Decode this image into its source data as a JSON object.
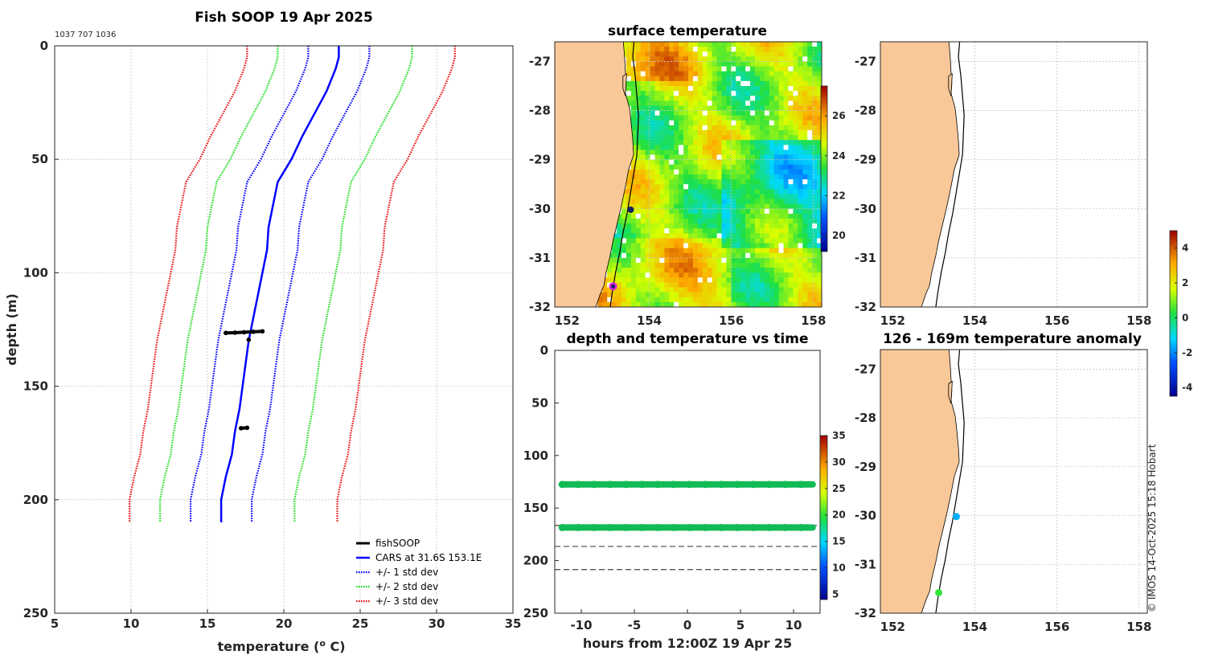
{
  "header": {
    "title": "Fish SOOP 19 Apr 2025",
    "ids": "1037 707 1036"
  },
  "colors": {
    "land": "#f9c898",
    "cars": "#0000ff",
    "std1": "#0000ff",
    "std2": "#22dd22",
    "std3": "#ee1111",
    "fishsoop": "#000000",
    "obs_green": "#11bb55",
    "anomaly_point": "#22aaee",
    "track_point": "#112266",
    "start_marker": "#dd22dd"
  },
  "chart_data": [
    {
      "id": "profile",
      "type": "line",
      "title": "Fish SOOP 19 Apr 2025",
      "xlabel": "temperature (",
      "xlabel_sup": "o",
      "xlabel_end": " C)",
      "ylabel": "depth (m)",
      "xlim": [
        5,
        35
      ],
      "ylim": [
        0,
        250
      ],
      "y_reversed": true,
      "xticks": [
        "5",
        "10",
        "15",
        "20",
        "25",
        "30",
        "35"
      ],
      "yticks": [
        "0",
        "50",
        "100",
        "150",
        "200",
        "250"
      ],
      "xtick_values": [
        5,
        10,
        15,
        20,
        25,
        30,
        35
      ],
      "ytick_values": [
        0,
        50,
        100,
        150,
        200,
        250
      ],
      "depths": [
        0,
        5,
        10,
        20,
        30,
        40,
        50,
        60,
        70,
        80,
        90,
        100,
        110,
        120,
        130,
        140,
        150,
        160,
        170,
        180,
        190,
        200,
        210
      ],
      "cars_mean": [
        23.6,
        23.6,
        23.4,
        22.8,
        22.0,
        21.2,
        20.5,
        19.6,
        19.3,
        19.0,
        18.9,
        18.6,
        18.3,
        18.0,
        17.7,
        17.5,
        17.3,
        17.1,
        16.8,
        16.6,
        16.2,
        15.9,
        15.9
      ],
      "series": [
        {
          "name": "+/- 3 std dev (low)",
          "style": "std3",
          "offset": -6.0
        },
        {
          "name": "+/- 2 std dev (low)",
          "style": "std2",
          "offset": -4.0
        },
        {
          "name": "+/- 1 std dev (low)",
          "style": "std1",
          "offset": -2.0
        },
        {
          "name": "+/- 1 std dev (high)",
          "style": "std1",
          "offset": 2.0
        },
        {
          "name": "+/- 2 std dev (high)",
          "style": "std2",
          "offset": 4.8
        },
        {
          "name": "+/- 3 std dev (high)",
          "style": "std3",
          "offset": 7.6
        }
      ],
      "fishsoop_points": [
        {
          "t": 16.2,
          "d": 126.5
        },
        {
          "t": 16.8,
          "d": 126.4
        },
        {
          "t": 17.4,
          "d": 126.2
        },
        {
          "t": 18.0,
          "d": 126.0
        },
        {
          "t": 18.6,
          "d": 125.8
        },
        {
          "t": 17.7,
          "d": 129.5
        },
        {
          "t": 17.2,
          "d": 168.5
        },
        {
          "t": 17.6,
          "d": 168.3
        }
      ],
      "legend": {
        "position": "bottom-right",
        "entries": [
          {
            "label": "fishSOOP",
            "style": "fishsoop"
          },
          {
            "label": "CARS at 31.6S 153.1E",
            "style": "cars"
          },
          {
            "label": "+/- 1 std dev",
            "style": "std1"
          },
          {
            "label": "+/- 2 std dev",
            "style": "std2"
          },
          {
            "label": "+/- 3 std dev",
            "style": "std3"
          }
        ]
      }
    },
    {
      "id": "sst_map",
      "type": "heatmap",
      "title": "surface temperature",
      "xlim": [
        151.7,
        158.2
      ],
      "ylim": [
        -32,
        -26.6
      ],
      "xticks": [
        "152",
        "154",
        "156",
        "158"
      ],
      "yticks": [
        "-27",
        "-28",
        "-29",
        "-30",
        "-31",
        "-32"
      ],
      "xtick_values": [
        152,
        154,
        156,
        158
      ],
      "ytick_values": [
        -27,
        -28,
        -29,
        -30,
        -31,
        -32
      ],
      "colorbar": {
        "ticks": [
          "20",
          "22",
          "24",
          "26"
        ],
        "tick_values": [
          20,
          22,
          24,
          26
        ],
        "range": [
          19.2,
          27.5
        ]
      },
      "track_point": {
        "lon": 153.55,
        "lat": -30.02
      },
      "start_point": {
        "lon": 153.12,
        "lat": -31.58
      }
    },
    {
      "id": "blank_map",
      "type": "scatter",
      "title": "",
      "xlim": [
        151.7,
        158.2
      ],
      "ylim": [
        -32,
        -26.6
      ],
      "xticks": [
        "152",
        "154",
        "156",
        "158"
      ],
      "yticks": [
        "-27",
        "-28",
        "-29",
        "-30",
        "-31",
        "-32"
      ],
      "xtick_values": [
        152,
        154,
        156,
        158
      ],
      "ytick_values": [
        -27,
        -28,
        -29,
        -30,
        -31,
        -32
      ]
    },
    {
      "id": "depth_time",
      "type": "scatter",
      "title": "depth and temperature vs time",
      "xlabel": "hours from 12:00Z 19 Apr 25",
      "xlim": [
        -12.5,
        12.5
      ],
      "ylim": [
        0,
        250
      ],
      "y_reversed": true,
      "xticks": [
        "-10",
        "-5",
        "0",
        "5",
        "10"
      ],
      "yticks": [
        "0",
        "50",
        "100",
        "150",
        "200",
        "250"
      ],
      "xtick_values": [
        -10,
        -5,
        0,
        5,
        10
      ],
      "ytick_values": [
        0,
        50,
        100,
        150,
        200,
        250
      ],
      "bands": [
        {
          "depth_start": 127.5,
          "depth_end": 127.5,
          "t_start": -11.8,
          "t_end": 11.8,
          "temperature": 21
        },
        {
          "depth_start": 168.5,
          "depth_end": 168.5,
          "t_start": -11.8,
          "t_end": 11.8,
          "temperature": 21
        }
      ],
      "dashed_depths": [
        166.5,
        186.5,
        208.5
      ],
      "colorbar": {
        "ticks": [
          "5",
          "10",
          "15",
          "20",
          "25",
          "30",
          "35"
        ],
        "tick_values": [
          5,
          10,
          15,
          20,
          25,
          30,
          35
        ],
        "range": [
          4,
          35
        ]
      }
    },
    {
      "id": "anomaly_map",
      "type": "scatter",
      "title": "126 - 169m temperature anomaly",
      "xlim": [
        151.7,
        158.2
      ],
      "ylim": [
        -32,
        -26.6
      ],
      "xticks": [
        "152",
        "154",
        "156",
        "158"
      ],
      "yticks": [
        "-27",
        "-28",
        "-29",
        "-30",
        "-31",
        "-32"
      ],
      "xtick_values": [
        152,
        154,
        156,
        158
      ],
      "ytick_values": [
        -27,
        -28,
        -29,
        -30,
        -31,
        -32
      ],
      "points": [
        {
          "lon": 153.55,
          "lat": -30.02,
          "anomaly": -1.6
        },
        {
          "lon": 153.12,
          "lat": -31.58,
          "anomaly": 0.4
        }
      ],
      "colorbar": {
        "ticks": [
          "4",
          "2",
          "0",
          "-2",
          "-4"
        ],
        "tick_values": [
          4,
          2,
          0,
          -2,
          -4
        ],
        "range": [
          -4.5,
          5
        ]
      }
    }
  ],
  "footer": {
    "credit": "© IMOS 14-Oct-2025 15:18 Hobart"
  }
}
